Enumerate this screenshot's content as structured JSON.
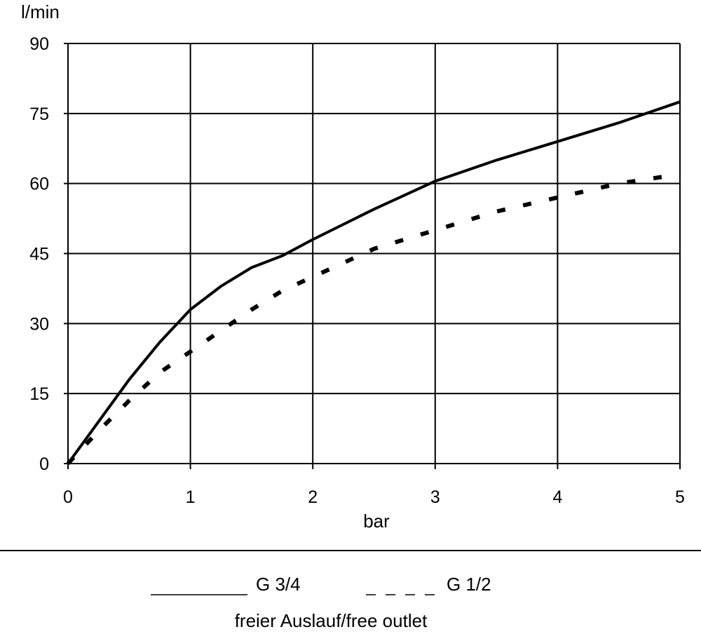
{
  "chart_data": {
    "type": "line",
    "ylabel": "l/min",
    "xlabel": "bar",
    "xlim": [
      0,
      5
    ],
    "ylim": [
      0,
      90
    ],
    "x_ticks": [
      "0",
      "1",
      "2",
      "3",
      "4",
      "5"
    ],
    "y_ticks": [
      "0",
      "15",
      "30",
      "45",
      "60",
      "75",
      "90"
    ],
    "grid": true,
    "legend_position": "bottom",
    "legend_caption": "freier Auslauf/free outlet",
    "series": [
      {
        "name": "G 3/4",
        "style": "solid",
        "x": [
          0,
          0.25,
          0.5,
          0.75,
          1.0,
          1.25,
          1.5,
          1.75,
          2.0,
          2.5,
          3.0,
          3.5,
          4.0,
          4.5,
          5.0
        ],
        "values": [
          0,
          9,
          18,
          26,
          33,
          38,
          42,
          44.5,
          48,
          54.5,
          60.5,
          65,
          69,
          73,
          77.5
        ]
      },
      {
        "name": "G 1/2",
        "style": "dashed",
        "x": [
          0,
          0.25,
          0.5,
          0.75,
          1.0,
          1.25,
          1.5,
          1.75,
          2.0,
          2.5,
          3.0,
          3.5,
          4.0,
          4.5,
          5.0
        ],
        "values": [
          0,
          7,
          13.5,
          19.5,
          24,
          28.5,
          33,
          37,
          40,
          46,
          50,
          54,
          57,
          60,
          62
        ]
      }
    ]
  }
}
